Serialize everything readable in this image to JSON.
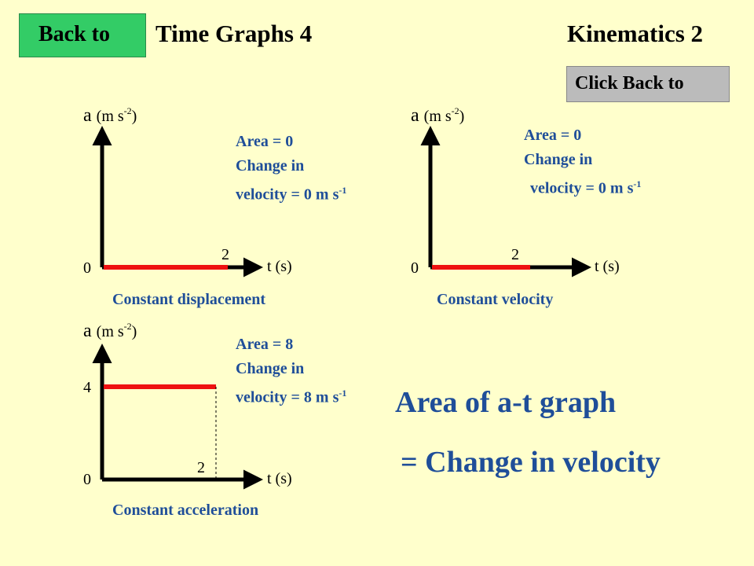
{
  "header": {
    "back_button": "Back to",
    "title": "Time Graphs 4",
    "subject": "Kinematics 2",
    "click_back_button": "Click Back to"
  },
  "colors": {
    "background": "#FFFFCC",
    "back_button": "#33CC66",
    "click_back_button": "#BBBBBB",
    "text_blue": "#1F4E99",
    "graph_line": "#EE1111",
    "axis": "#000000"
  },
  "graphs": [
    {
      "y_axis_label": "a",
      "y_axis_unit": "(m s",
      "y_axis_unit_exp": "-2",
      "y_axis_unit_close": ")",
      "x_axis_label": "t (s)",
      "origin": "0",
      "x_tick": "2",
      "area_line": "Area = 0",
      "change_line": "Change in",
      "velocity_line": "velocity = 0 m s",
      "velocity_exp": "-1",
      "caption": "Constant displacement"
    },
    {
      "y_axis_label": "a",
      "y_axis_unit": "(m s",
      "y_axis_unit_exp": "-2",
      "y_axis_unit_close": ")",
      "x_axis_label": "t (s)",
      "origin": "0",
      "x_tick": "2",
      "area_line": "Area = 0",
      "change_line": "Change in",
      "velocity_line": "velocity = 0 m s",
      "velocity_exp": "-1",
      "caption": "Constant velocity"
    },
    {
      "y_axis_label": "a",
      "y_axis_unit": "(m s",
      "y_axis_unit_exp": "-2",
      "y_axis_unit_close": ")",
      "x_axis_label": "t (s)",
      "origin": "0",
      "x_tick": "2",
      "y_tick": "4",
      "area_line": "Area = 8",
      "change_line": "Change in",
      "velocity_line": "velocity = 8 m s",
      "velocity_exp": "-1",
      "caption": "Constant acceleration"
    }
  ],
  "conclusion": {
    "line1": "Area of a-t graph",
    "line2": "= Change in velocity"
  }
}
